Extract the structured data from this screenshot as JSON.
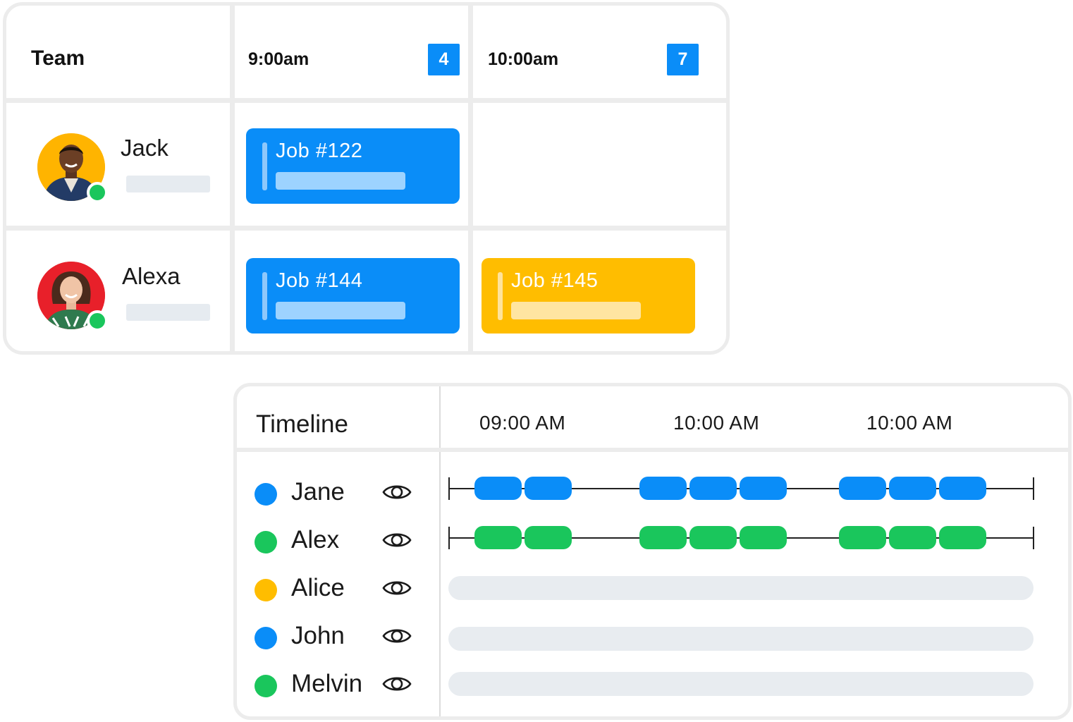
{
  "schedule": {
    "team_header": "Team",
    "columns": [
      {
        "time": "9:00am",
        "count": "4"
      },
      {
        "time": "10:00am",
        "count": "7"
      }
    ],
    "members": [
      {
        "name": "Jack",
        "avatar_bg": "#ffb400",
        "status": "online"
      },
      {
        "name": "Alexa",
        "avatar_bg": "#e8202a",
        "status": "online"
      }
    ],
    "jobs": [
      {
        "label": "Job #122",
        "member": "Jack",
        "column": "9:00am",
        "color": "#0a8df8"
      },
      {
        "label": "Job #144",
        "member": "Alexa",
        "column": "9:00am",
        "color": "#0a8df8"
      },
      {
        "label": "Job #145",
        "member": "Alexa",
        "column": "10:00am",
        "color": "#ffbd00"
      }
    ]
  },
  "timeline": {
    "title": "Timeline",
    "times": [
      "09:00 AM",
      "10:00 AM",
      "10:00 AM"
    ],
    "people": [
      {
        "name": "Jane",
        "color": "#0a8df8",
        "icon": "eye-icon",
        "has_track": true
      },
      {
        "name": "Alex",
        "color": "#1ac65c",
        "icon": "eye-icon",
        "has_track": true
      },
      {
        "name": "Alice",
        "color": "#ffbd00",
        "icon": "eye-icon",
        "has_track": false
      },
      {
        "name": "John",
        "color": "#0a8df8",
        "icon": "eye-icon",
        "has_track": false
      },
      {
        "name": "Melvin",
        "color": "#1ac65c",
        "icon": "eye-icon",
        "has_track": false
      }
    ]
  },
  "colors": {
    "accent_blue": "#0a8df8",
    "accent_green": "#1ac65c",
    "accent_yellow": "#ffbd00",
    "border": "#ececec"
  }
}
